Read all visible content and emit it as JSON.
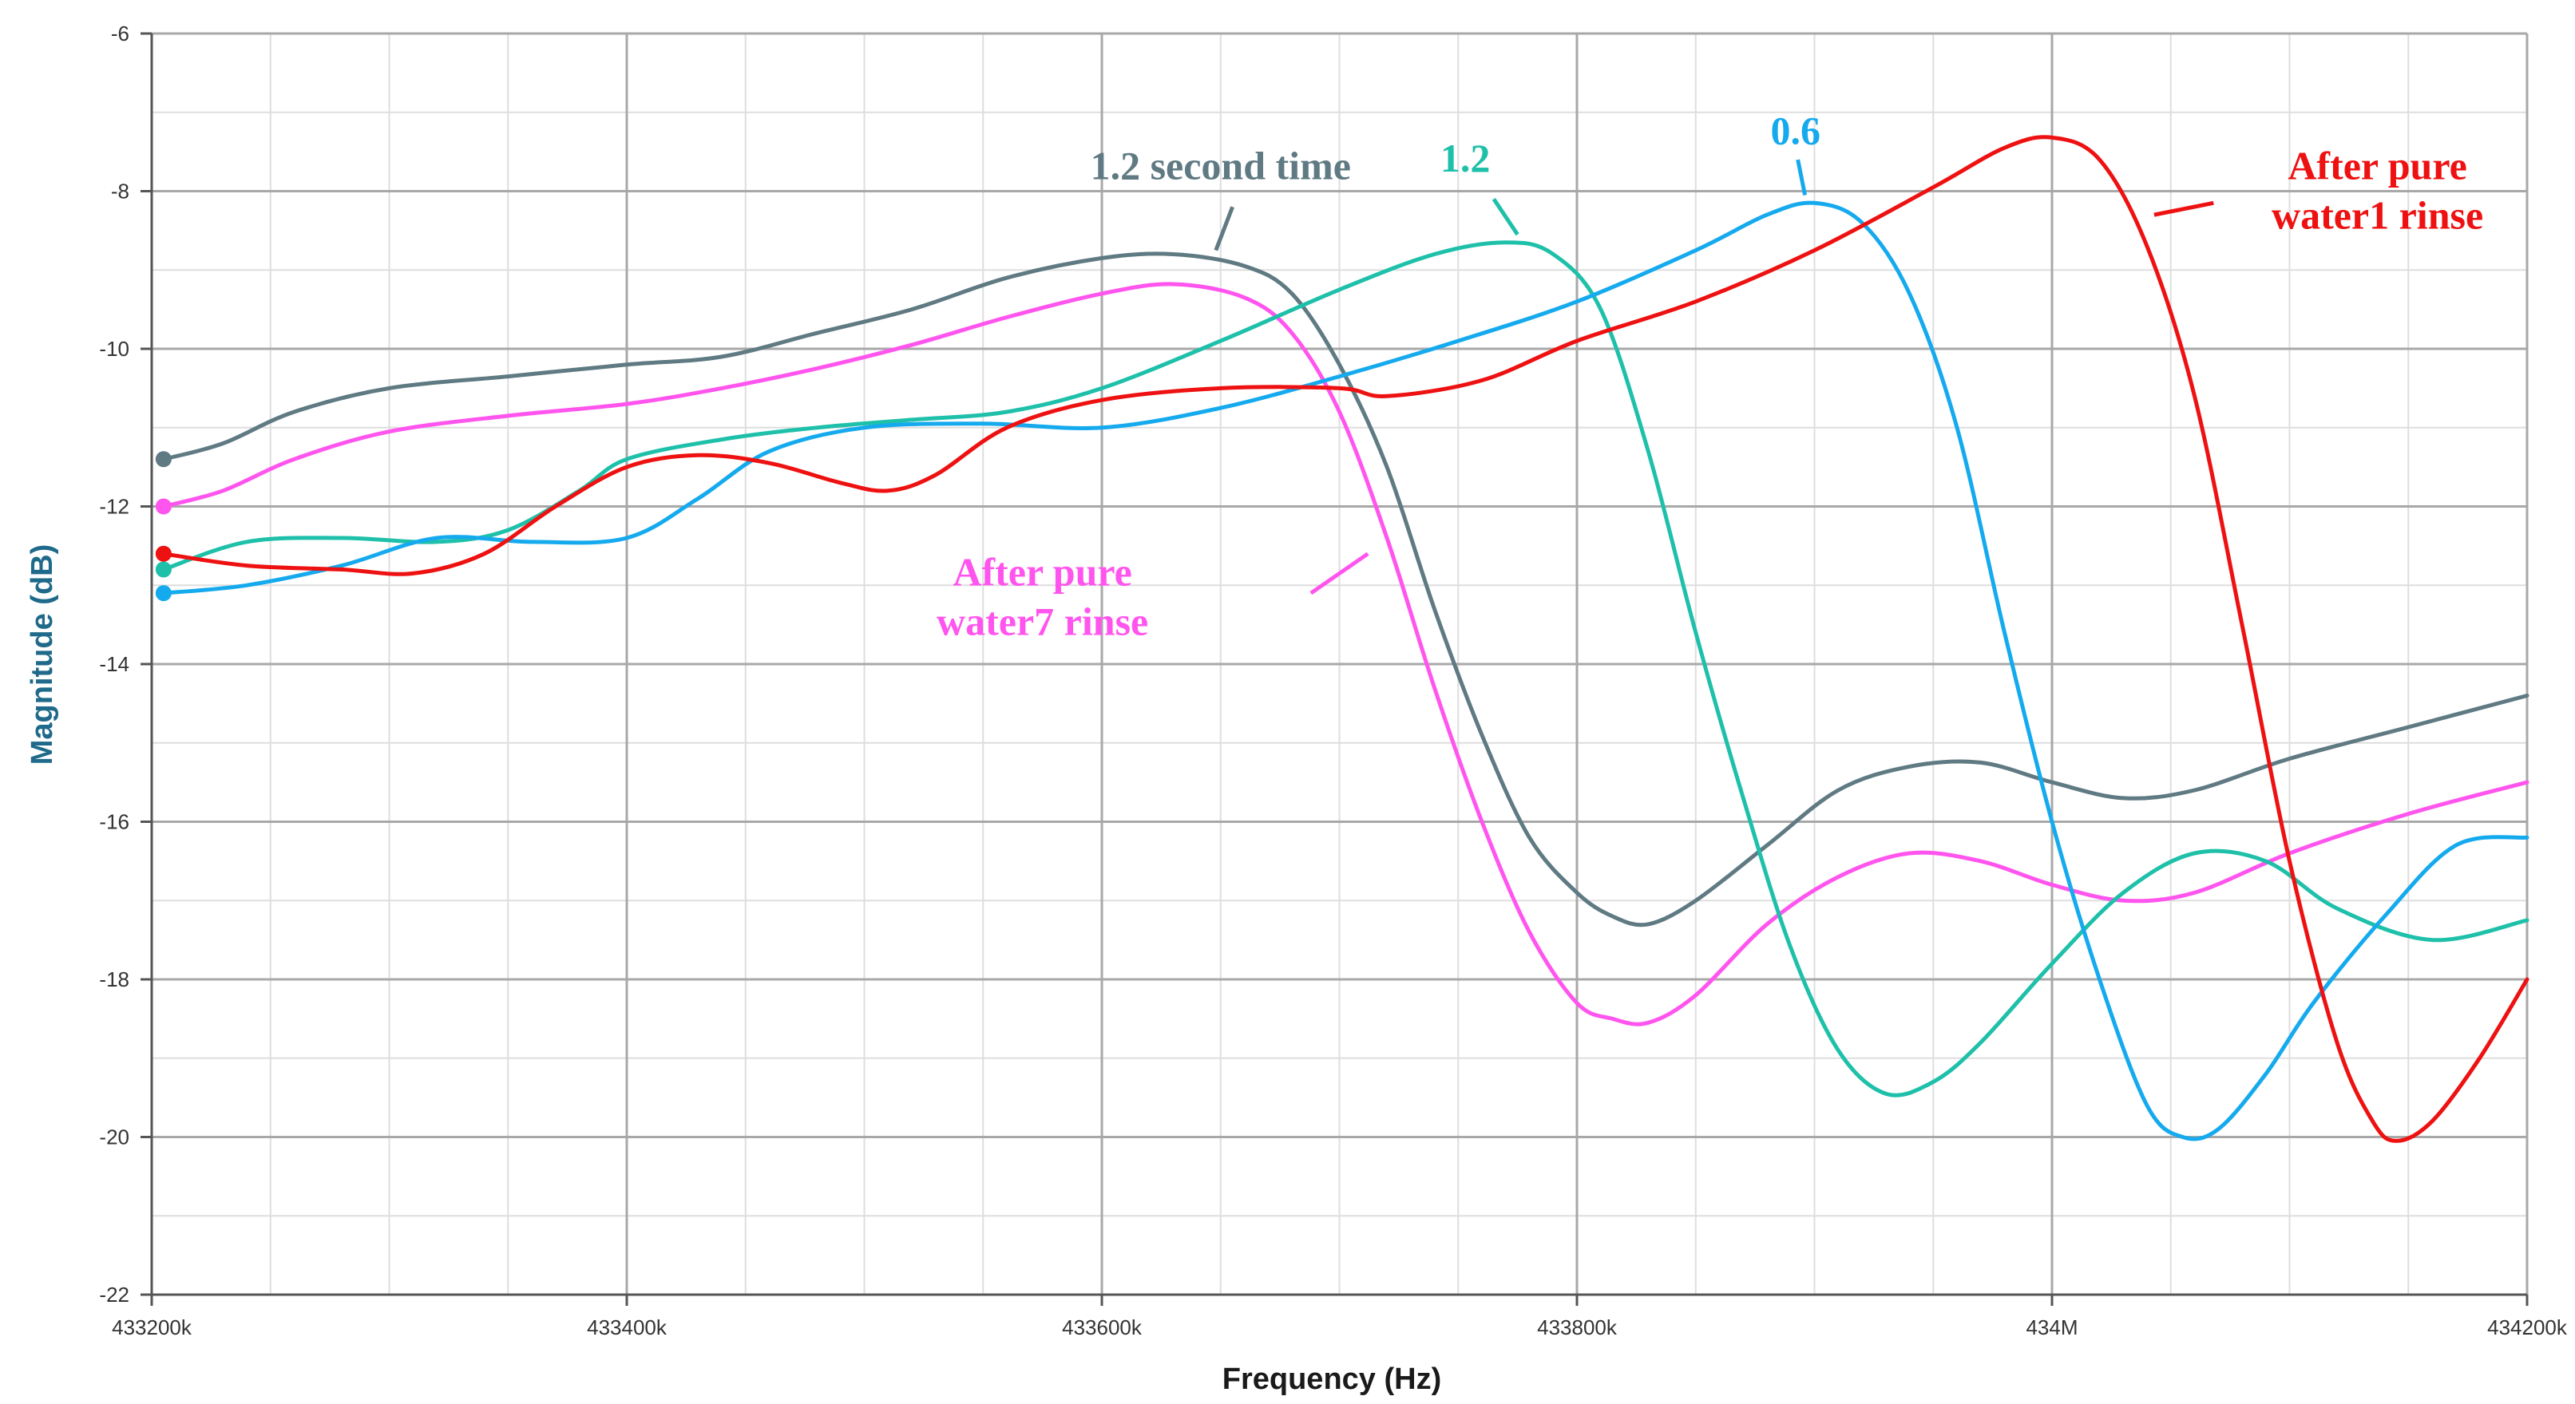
{
  "colors": {
    "axis_title_y": "#1f6a8a",
    "axis_title_x": "#1a1a1a",
    "grid_major": "#a8a8a8",
    "grid_minor": "#dedede"
  },
  "chart_data": {
    "type": "line",
    "title": "",
    "xlabel": "Frequency (Hz)",
    "ylabel": "Magnitude (dB)",
    "xlim": [
      433200,
      434200
    ],
    "ylim": [
      -22,
      -6
    ],
    "x_unit": "kHz",
    "grid": true,
    "x_ticks": [
      {
        "value": 433200,
        "label": "433200k"
      },
      {
        "value": 433400,
        "label": "433400k"
      },
      {
        "value": 433600,
        "label": "433600k"
      },
      {
        "value": 433800,
        "label": "433800k"
      },
      {
        "value": 434000,
        "label": "434M"
      },
      {
        "value": 434200,
        "label": "434200k"
      }
    ],
    "y_ticks": [
      {
        "value": -6,
        "label": "-6"
      },
      {
        "value": -8,
        "label": "-8"
      },
      {
        "value": -10,
        "label": "-10"
      },
      {
        "value": -12,
        "label": "-12"
      },
      {
        "value": -14,
        "label": "-14"
      },
      {
        "value": -16,
        "label": "-16"
      },
      {
        "value": -18,
        "label": "-18"
      },
      {
        "value": -20,
        "label": "-20"
      },
      {
        "value": -22,
        "label": "-22"
      }
    ],
    "series": [
      {
        "label_id": "gray",
        "color": "#5f7a82",
        "x": [
          433205,
          433230,
          433260,
          433300,
          433350,
          433400,
          433440,
          433480,
          433520,
          433560,
          433600,
          433630,
          433660,
          433680,
          433700,
          433720,
          433740,
          433760,
          433780,
          433800,
          433815,
          433830,
          433850,
          433880,
          433910,
          433940,
          433970,
          434000,
          434030,
          434060,
          434100,
          434150,
          434200
        ],
        "y": [
          -11.4,
          -11.2,
          -10.8,
          -10.5,
          -10.35,
          -10.2,
          -10.1,
          -9.8,
          -9.5,
          -9.1,
          -8.85,
          -8.8,
          -8.95,
          -9.3,
          -10.2,
          -11.5,
          -13.3,
          -14.9,
          -16.2,
          -16.9,
          -17.2,
          -17.3,
          -17.0,
          -16.3,
          -15.6,
          -15.3,
          -15.25,
          -15.5,
          -15.7,
          -15.6,
          -15.2,
          -14.8,
          -14.4
        ]
      },
      {
        "label_id": "magenta",
        "color": "#ff55ee",
        "x": [
          433205,
          433230,
          433260,
          433300,
          433350,
          433400,
          433440,
          433480,
          433520,
          433560,
          433600,
          433630,
          433660,
          433680,
          433700,
          433720,
          433740,
          433760,
          433780,
          433800,
          433815,
          433830,
          433850,
          433880,
          433910,
          433940,
          433970,
          434000,
          434030,
          434060,
          434100,
          434150,
          434200
        ],
        "y": [
          -12.0,
          -11.8,
          -11.4,
          -11.05,
          -10.85,
          -10.7,
          -10.5,
          -10.25,
          -9.95,
          -9.6,
          -9.3,
          -9.18,
          -9.35,
          -9.8,
          -10.8,
          -12.4,
          -14.3,
          -16.0,
          -17.4,
          -18.3,
          -18.5,
          -18.55,
          -18.2,
          -17.3,
          -16.7,
          -16.4,
          -16.5,
          -16.8,
          -17.0,
          -16.9,
          -16.4,
          -15.9,
          -15.5
        ]
      },
      {
        "label_id": "teal",
        "color": "#1ec0aa",
        "x": [
          433205,
          433240,
          433280,
          433320,
          433350,
          433380,
          433400,
          433440,
          433480,
          433520,
          433560,
          433600,
          433650,
          433700,
          433740,
          433770,
          433790,
          433810,
          433830,
          433850,
          433870,
          433890,
          433910,
          433930,
          433950,
          433970,
          434000,
          434030,
          434060,
          434090,
          434120,
          434160,
          434200
        ],
        "y": [
          -12.8,
          -12.45,
          -12.4,
          -12.45,
          -12.3,
          -11.8,
          -11.4,
          -11.15,
          -11.0,
          -10.9,
          -10.8,
          -10.5,
          -9.9,
          -9.25,
          -8.8,
          -8.65,
          -8.8,
          -9.5,
          -11.3,
          -13.6,
          -15.7,
          -17.6,
          -18.9,
          -19.45,
          -19.3,
          -18.8,
          -17.8,
          -16.9,
          -16.4,
          -16.5,
          -17.1,
          -17.5,
          -17.25
        ]
      },
      {
        "label_id": "blue",
        "color": "#15aaee",
        "x": [
          433205,
          433240,
          433280,
          433320,
          433360,
          433400,
          433430,
          433460,
          433500,
          433550,
          433600,
          433650,
          433700,
          433750,
          433800,
          433850,
          433880,
          433900,
          433920,
          433940,
          433960,
          433980,
          434000,
          434020,
          434040,
          434055,
          434070,
          434090,
          434110,
          434140,
          434170,
          434200
        ],
        "y": [
          -13.1,
          -13.0,
          -12.75,
          -12.4,
          -12.45,
          -12.4,
          -11.9,
          -11.3,
          -11.0,
          -10.95,
          -11.0,
          -10.75,
          -10.35,
          -9.9,
          -9.4,
          -8.75,
          -8.3,
          -8.15,
          -8.4,
          -9.3,
          -11.0,
          -13.6,
          -16.0,
          -18.0,
          -19.6,
          -20.0,
          -19.9,
          -19.2,
          -18.3,
          -17.2,
          -16.3,
          -16.2
        ]
      },
      {
        "label_id": "red",
        "color": "#ee1111",
        "x": [
          433205,
          433240,
          433280,
          433310,
          433340,
          433370,
          433400,
          433430,
          433460,
          433490,
          433510,
          433530,
          433560,
          433600,
          433650,
          433700,
          433720,
          433760,
          433800,
          433850,
          433900,
          433950,
          433980,
          434000,
          434020,
          434040,
          434060,
          434080,
          434100,
          434120,
          434135,
          434145,
          434160,
          434180,
          434200
        ],
        "y": [
          -12.6,
          -12.75,
          -12.8,
          -12.85,
          -12.6,
          -12.0,
          -11.5,
          -11.35,
          -11.45,
          -11.7,
          -11.8,
          -11.6,
          -11.0,
          -10.65,
          -10.5,
          -10.5,
          -10.6,
          -10.4,
          -9.9,
          -9.4,
          -8.75,
          -7.95,
          -7.45,
          -7.32,
          -7.6,
          -8.7,
          -10.6,
          -13.5,
          -16.5,
          -18.8,
          -19.8,
          -20.05,
          -19.8,
          -19.0,
          -18.0
        ]
      }
    ],
    "annotations": [
      {
        "text": "1.2 second time",
        "color": "#5f7a82",
        "series": "gray",
        "text_x": 433650,
        "text_y": -7.85,
        "leader": [
          [
            433655,
            -8.2
          ],
          [
            433648,
            -8.75
          ]
        ]
      },
      {
        "text": "1.2",
        "color": "#1ec0aa",
        "series": "teal",
        "text_x": 433753,
        "text_y": -7.75,
        "leader": [
          [
            433765,
            -8.1
          ],
          [
            433775,
            -8.55
          ]
        ]
      },
      {
        "text": "0.6",
        "color": "#15aaee",
        "series": "blue",
        "text_x": 433892,
        "text_y": -7.4,
        "leader": [
          [
            433893,
            -7.6
          ],
          [
            433896,
            -8.05
          ]
        ]
      },
      {
        "lines": [
          "After pure",
          "water1 rinse"
        ],
        "color": "#ee1111",
        "series": "red",
        "text_x": 434137,
        "text_y": -7.85,
        "leader": [
          [
            434043,
            -8.3
          ],
          [
            434068,
            -8.15
          ]
        ]
      },
      {
        "lines": [
          "After pure",
          "water7 rinse"
        ],
        "color": "#ff55ee",
        "series": "magenta",
        "text_x": 433575,
        "text_y": -13.0,
        "leader": [
          [
            433688,
            -13.1
          ],
          [
            433712,
            -12.6
          ]
        ]
      }
    ]
  }
}
